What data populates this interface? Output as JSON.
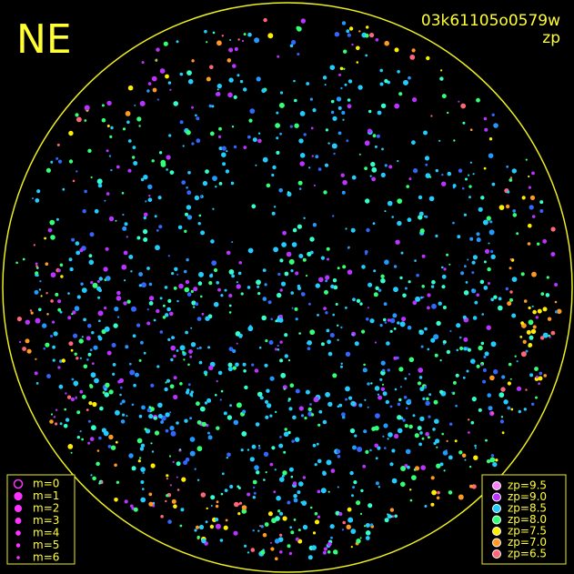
{
  "corner_label": "NE",
  "image_id": "03k61105o0579w",
  "mode": "zp",
  "magnitude_legend": [
    "m=0",
    "m=1",
    "m=2",
    "m=3",
    "m=4",
    "m=5",
    "m=6"
  ],
  "zp_legend": [
    {
      "label": "zp=9.5",
      "color": "#ff80ff"
    },
    {
      "label": "zp=9.0",
      "color": "#bb33ff"
    },
    {
      "label": "zp=8.5",
      "color": "#22ccff"
    },
    {
      "label": "zp=8.0",
      "color": "#33ff77"
    },
    {
      "label": "zp=7.5",
      "color": "#ffee00"
    },
    {
      "label": "zp=7.0",
      "color": "#ff9922"
    },
    {
      "label": "zp=6.5",
      "color": "#ff6677"
    }
  ]
}
